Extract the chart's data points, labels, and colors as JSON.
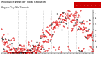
{
  "title": "Milwaukee Weather  Solar Radiation",
  "subtitle": "Avg per Day W/m2/minute",
  "bg_color": "#ffffff",
  "plot_bg_color": "#ffffff",
  "grid_color": "#c0c0c0",
  "dot_color_red": "#dd0000",
  "dot_color_black": "#000000",
  "legend_box_color": "#cc0000",
  "ylim": [
    0,
    7.5
  ],
  "ytick_vals": [
    1,
    2,
    3,
    4,
    5,
    6,
    7
  ],
  "num_points": 365,
  "seed": 7
}
